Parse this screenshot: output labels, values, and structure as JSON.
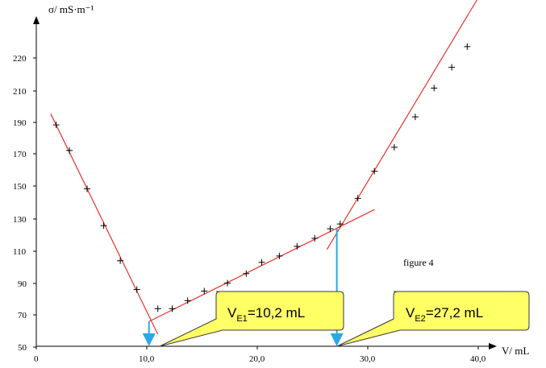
{
  "chart_data": {
    "type": "scatter",
    "ylabel": "σ/ mS·m⁻¹",
    "xlabel": "V/ mL",
    "x_ticks": [
      "0",
      "10,0",
      "20,0",
      "30,0",
      "40,0"
    ],
    "y_ticks": [
      "50",
      "70",
      "90",
      "110",
      "130",
      "150",
      "170",
      "190",
      "210",
      "220"
    ],
    "xlim": [
      0,
      42
    ],
    "ylim": [
      48,
      234
    ],
    "points": [
      {
        "x": 1.8,
        "y": 189
      },
      {
        "x": 3.0,
        "y": 173
      },
      {
        "x": 4.6,
        "y": 149
      },
      {
        "x": 6.1,
        "y": 126
      },
      {
        "x": 7.6,
        "y": 104
      },
      {
        "x": 9.1,
        "y": 86
      },
      {
        "x": 11.0,
        "y": 74
      },
      {
        "x": 12.3,
        "y": 74
      },
      {
        "x": 13.7,
        "y": 79
      },
      {
        "x": 15.2,
        "y": 85
      },
      {
        "x": 17.3,
        "y": 90
      },
      {
        "x": 19.0,
        "y": 96
      },
      {
        "x": 20.4,
        "y": 103
      },
      {
        "x": 22.0,
        "y": 107
      },
      {
        "x": 23.6,
        "y": 113
      },
      {
        "x": 25.2,
        "y": 118
      },
      {
        "x": 26.6,
        "y": 124
      },
      {
        "x": 27.5,
        "y": 127
      },
      {
        "x": 29.1,
        "y": 143
      },
      {
        "x": 30.6,
        "y": 160
      },
      {
        "x": 32.4,
        "y": 175
      },
      {
        "x": 34.3,
        "y": 194
      },
      {
        "x": 36.0,
        "y": 212
      },
      {
        "x": 37.6,
        "y": 225
      },
      {
        "x": 39.0,
        "y": 238
      }
    ],
    "fit_lines": [
      {
        "x1": 1.3,
        "y1": 196,
        "x2": 11.0,
        "y2": 58
      },
      {
        "x1": 10.2,
        "y1": 66,
        "x2": 30.6,
        "y2": 136
      },
      {
        "x1": 26.3,
        "y1": 111,
        "x2": 41.0,
        "y2": 280
      }
    ],
    "equivalence_points": [
      {
        "x": 10.2,
        "y": 66,
        "label": "10,2 mL"
      },
      {
        "x": 27.2,
        "y": 124,
        "label": "27,2 mL"
      }
    ],
    "annotation": "figure 4",
    "grid": false,
    "colors": {
      "fit": "#e8332a",
      "arrow": "#2aa8e6",
      "callout_fill": "#ffff66",
      "callout_stroke": "#3a3a3a"
    }
  },
  "callouts": {
    "e1": {
      "sym": "V",
      "sub": "E1",
      "val": "=10,2 mL"
    },
    "e2": {
      "sym": "V",
      "sub": "E2",
      "val": "=27,2 mL"
    }
  }
}
